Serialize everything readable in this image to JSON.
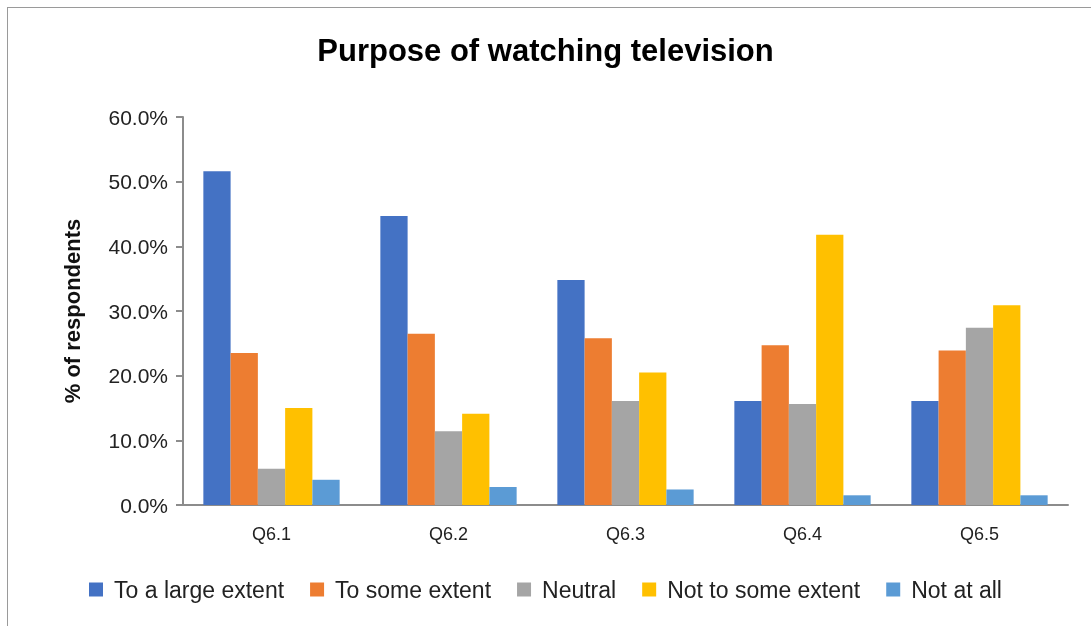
{
  "chart_data": {
    "type": "bar",
    "title": "Purpose of watching television",
    "ylabel": "% of respondents",
    "categories": [
      "Q6.1",
      "Q6.2",
      "Q6.3",
      "Q6.4",
      "Q6.5"
    ],
    "series": [
      {
        "name": "To a large extent",
        "color": "#4472c4",
        "values": [
          51.6,
          44.7,
          34.8,
          16.1,
          16.1
        ]
      },
      {
        "name": "To some extent",
        "color": "#ed7d31",
        "values": [
          23.5,
          26.5,
          25.8,
          24.7,
          23.9
        ]
      },
      {
        "name": "Neutral",
        "color": "#a5a5a5",
        "values": [
          5.6,
          11.4,
          16.1,
          15.6,
          27.4
        ]
      },
      {
        "name": "Not to some extent",
        "color": "#ffc000",
        "values": [
          15.0,
          14.1,
          20.5,
          41.8,
          30.9
        ]
      },
      {
        "name": "Not at all",
        "color": "#5b9bd5",
        "values": [
          3.9,
          2.8,
          2.4,
          1.5,
          1.5
        ]
      }
    ],
    "ylim": [
      0,
      60
    ],
    "yticks": [
      {
        "value": 0,
        "label": "0.0%"
      },
      {
        "value": 10,
        "label": "10.0%"
      },
      {
        "value": 20,
        "label": "20.0%"
      },
      {
        "value": 30,
        "label": "30.0%"
      },
      {
        "value": 40,
        "label": "40.0%"
      },
      {
        "value": 50,
        "label": "50.0%"
      },
      {
        "value": 60,
        "label": "60.0%"
      }
    ],
    "legend": "bottom"
  }
}
